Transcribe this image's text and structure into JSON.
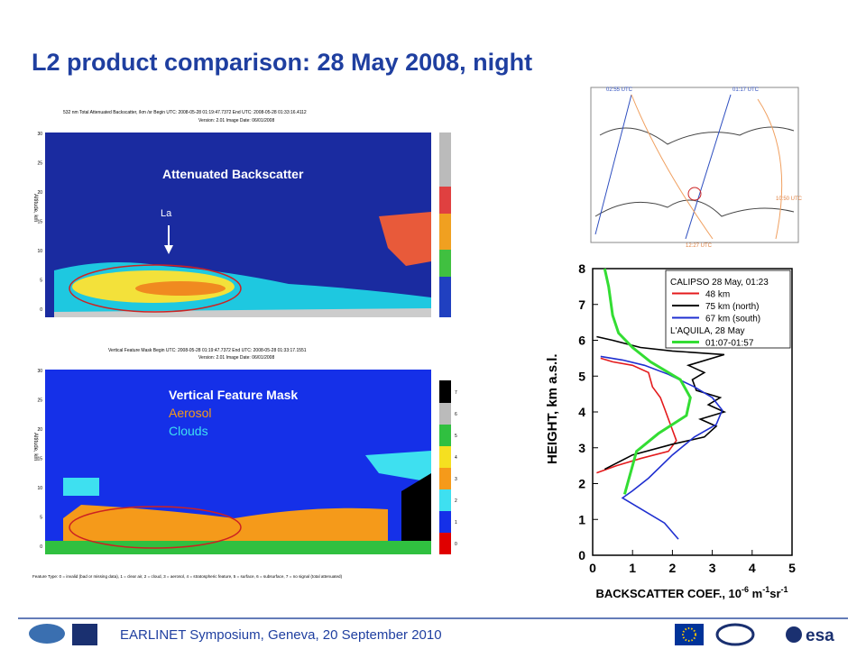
{
  "title": "L2 product comparison: 28 May 2008, night",
  "footer": "EARLINET Symposium, Geneva, 20 September 2010",
  "esa_logo": "esa",
  "backscatter_panel": {
    "header": "532 nm Total Attenuated Backscatter, /km /sr     Begin UTC: 2008-05-28 01:19:47.7372     End UTC: 2008-05-28 01:33:16.4112",
    "subheader": "Version: 2.01   Image Date: 06/01/2008",
    "ylabel": "Altitude, km",
    "yticks": [
      "30",
      "25",
      "20",
      "15",
      "10",
      "5",
      "0"
    ],
    "label": "Attenuated Backscatter",
    "marker": "La"
  },
  "vfm_panel": {
    "header": "Vertical Feature Mask     Begin UTC: 2008-05-28 01:19:47.7372     End UTC: 2008-05-28 01:33:17.1551",
    "subheader": "Version: 2.01   Image Date: 06/01/2008",
    "ylabel": "Altitude, km",
    "yticks": [
      "30",
      "25",
      "20",
      "15",
      "10",
      "5",
      "0"
    ],
    "labels": [
      "Vertical Feature Mask",
      "Aerosol",
      "Clouds"
    ],
    "colorbar": [
      "7",
      "6",
      "5",
      "4",
      "3",
      "2",
      "1",
      "0"
    ],
    "footnote": "Feature Type: 0 = invalid (bad or missing data), 1 = clear air, 2 = cloud, 3 = aerosol, 4 = stratospheric feature, 5 = surface, 6 = subsurface, 7 = no signal (total attenuated)"
  },
  "map": {
    "labels": [
      "02:55 UTC",
      "01:17 UTC",
      "10:50 UTC",
      "12:27 UTC"
    ]
  },
  "chart_data": {
    "type": "line",
    "ylabel": "HEIGHT, km a.s.l.",
    "xlabel_parts": [
      {
        "text": "BACKSCATTER COEF., 10"
      },
      {
        "sup": "-6"
      },
      {
        "text": " m"
      },
      {
        "sup": "-1"
      },
      {
        "text": "sr"
      },
      {
        "sup": "-1"
      }
    ],
    "xlim": [
      0,
      5
    ],
    "xticks": [
      0,
      1,
      2,
      3,
      4,
      5
    ],
    "ylim": [
      0,
      8
    ],
    "yticks": [
      0,
      1,
      2,
      3,
      4,
      5,
      6,
      7,
      8
    ],
    "annotations": [
      "CALIPSO 28 May, 01:23",
      "L'AQUILA, 28 May"
    ],
    "series": [
      {
        "name": "48 km",
        "color": "#e41a1c",
        "x": [
          0.1,
          0.6,
          1.2,
          1.9,
          2.1,
          2.0,
          1.9,
          1.8,
          1.7,
          1.5,
          1.4,
          1.0,
          0.5,
          0.2
        ],
        "y": [
          2.3,
          2.5,
          2.7,
          2.9,
          3.2,
          3.5,
          3.8,
          4.1,
          4.4,
          4.7,
          5.1,
          5.3,
          5.4,
          5.5
        ]
      },
      {
        "name": "75 km (north)",
        "color": "#000000",
        "x": [
          0.3,
          1.0,
          2.0,
          2.8,
          3.1,
          2.7,
          3.3,
          2.9,
          3.2,
          2.6,
          2.5,
          2.8,
          2.4,
          3.3,
          2.0,
          1.2,
          0.5,
          0.1
        ],
        "y": [
          2.4,
          2.8,
          3.1,
          3.3,
          3.6,
          3.8,
          4.0,
          4.2,
          4.4,
          4.6,
          4.9,
          5.1,
          5.3,
          5.6,
          5.7,
          5.8,
          6.0,
          6.1
        ]
      },
      {
        "name": "67 km (south)",
        "color": "#1f2fd0",
        "x": [
          2.15,
          1.8,
          1.2,
          0.75,
          1.0,
          1.4,
          2.0,
          2.55,
          3.1,
          3.25,
          3.0,
          2.55,
          1.9,
          1.3,
          0.75,
          0.2
        ],
        "y": [
          0.45,
          0.9,
          1.3,
          1.6,
          1.8,
          2.15,
          2.8,
          3.3,
          3.65,
          4.05,
          4.4,
          4.7,
          5.05,
          5.3,
          5.45,
          5.55
        ]
      },
      {
        "name": "01:07-01:57",
        "color": "#33dd33",
        "x": [
          0.8,
          1.1,
          1.65,
          2.35,
          2.45,
          2.2,
          1.45,
          1.0,
          0.65,
          0.5,
          0.4,
          0.3
        ],
        "y": [
          1.7,
          2.9,
          3.4,
          3.9,
          4.4,
          4.9,
          5.4,
          5.8,
          6.2,
          6.7,
          7.5,
          8.0
        ]
      }
    ]
  }
}
